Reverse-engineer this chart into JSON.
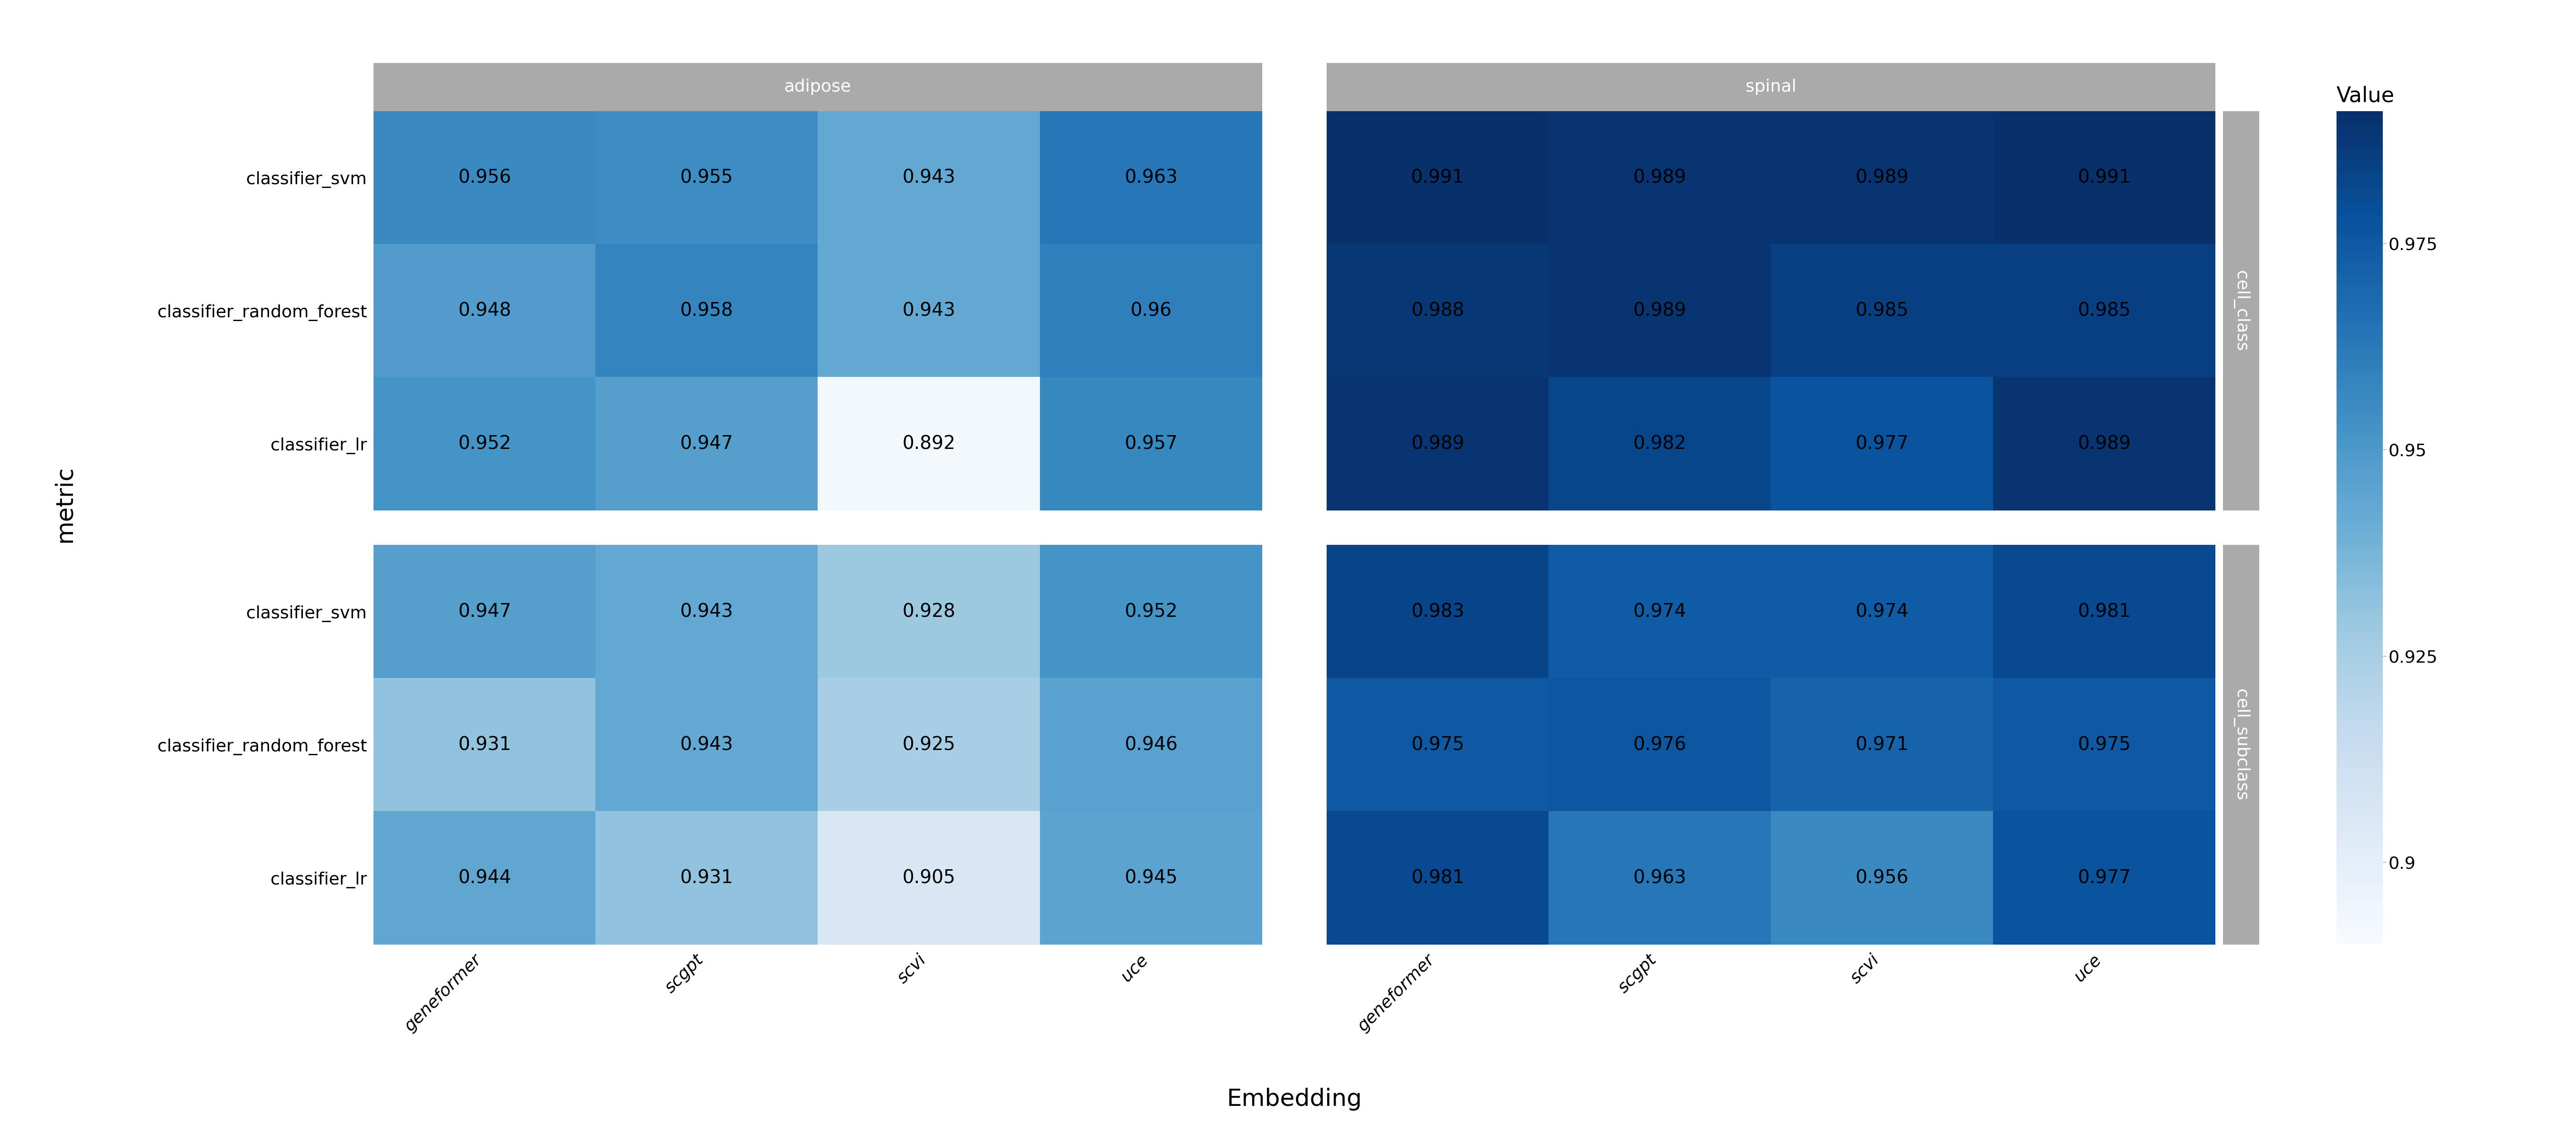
{
  "facet_col_labels": [
    "adipose",
    "spinal"
  ],
  "facet_row_labels": [
    "cell_class",
    "cell_subclass"
  ],
  "embeddings": [
    "geneformer",
    "scgpt",
    "scvi",
    "uce"
  ],
  "metrics": [
    "classifier_svm",
    "classifier_random_forest",
    "classifier_lr"
  ],
  "values": {
    "adipose": {
      "cell_class": {
        "classifier_svm": [
          0.956,
          0.955,
          0.943,
          0.963
        ],
        "classifier_random_forest": [
          0.948,
          0.958,
          0.943,
          0.96
        ],
        "classifier_lr": [
          0.952,
          0.947,
          0.892,
          0.957
        ]
      },
      "cell_subclass": {
        "classifier_svm": [
          0.947,
          0.943,
          0.928,
          0.952
        ],
        "classifier_random_forest": [
          0.931,
          0.943,
          0.925,
          0.946
        ],
        "classifier_lr": [
          0.944,
          0.931,
          0.905,
          0.945
        ]
      }
    },
    "spinal": {
      "cell_class": {
        "classifier_svm": [
          0.991,
          0.989,
          0.989,
          0.991
        ],
        "classifier_random_forest": [
          0.988,
          0.989,
          0.985,
          0.985
        ],
        "classifier_lr": [
          0.989,
          0.982,
          0.977,
          0.989
        ]
      },
      "cell_subclass": {
        "classifier_svm": [
          0.983,
          0.974,
          0.974,
          0.981
        ],
        "classifier_random_forest": [
          0.975,
          0.976,
          0.971,
          0.975
        ],
        "classifier_lr": [
          0.981,
          0.963,
          0.956,
          0.977
        ]
      }
    }
  },
  "vmin": 0.89,
  "vmax": 0.991,
  "cmap": "Blues",
  "colorbar_ticks": [
    0.9,
    0.925,
    0.95,
    0.975
  ],
  "xlabel": "Embedding",
  "ylabel": "metric",
  "cell_text_color": "black",
  "facet_header_bg": "#aaaaaa",
  "facet_header_text": "white",
  "strip_bg": "#aaaaaa",
  "strip_text_color": "white",
  "background_color": "white",
  "font_size_cell": 28,
  "font_size_axis_label": 36,
  "font_size_tick": 26,
  "font_size_facet": 26,
  "font_size_strip": 26,
  "font_size_legend_title": 32,
  "font_size_legend_tick": 26
}
